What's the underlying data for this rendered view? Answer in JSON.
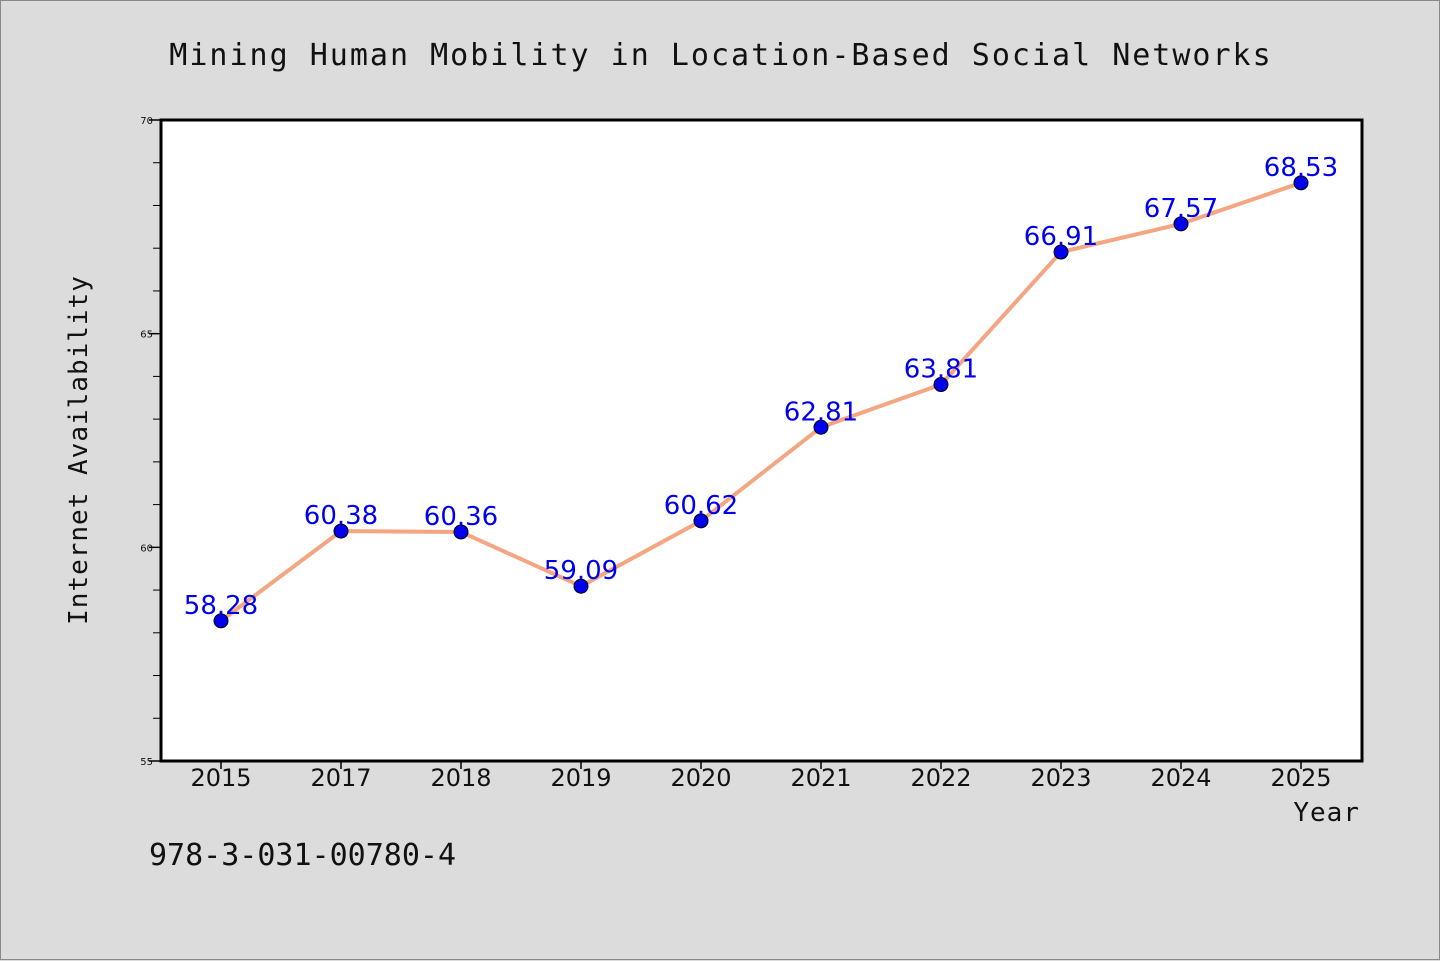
{
  "footer_code": "978-3-031-00780-4",
  "chart_data": {
    "type": "line",
    "title": "Mining Human Mobility in Location-Based Social Networks",
    "xlabel": "Year",
    "ylabel": "Internet Availability",
    "categories": [
      "2015",
      "2017",
      "2018",
      "2019",
      "2020",
      "2021",
      "2022",
      "2023",
      "2024",
      "2025"
    ],
    "series": [
      {
        "values": [
          58.28,
          60.38,
          60.36,
          59.09,
          60.62,
          62.81,
          63.81,
          66.91,
          67.57,
          68.53
        ]
      }
    ],
    "data_labels": [
      "58.28",
      "60.38",
      "60.36",
      "59.09",
      "60.62",
      "62.81",
      "63.81",
      "66.91",
      "67.57",
      "68.53"
    ],
    "ylim": [
      55,
      70
    ],
    "y_major_ticks": [
      55,
      60,
      65,
      70
    ],
    "y_major_tick_labels": [
      "55",
      "60",
      "65",
      "70"
    ],
    "y_minor_step": 1,
    "grid": false,
    "legend": "none",
    "colors": {
      "line": "#f4a582",
      "marker": "#0000ee",
      "data_label": "#0000ee",
      "plot_background": "#ffffff",
      "figure_background": "#dcdcdc",
      "axis": "#000000"
    }
  }
}
